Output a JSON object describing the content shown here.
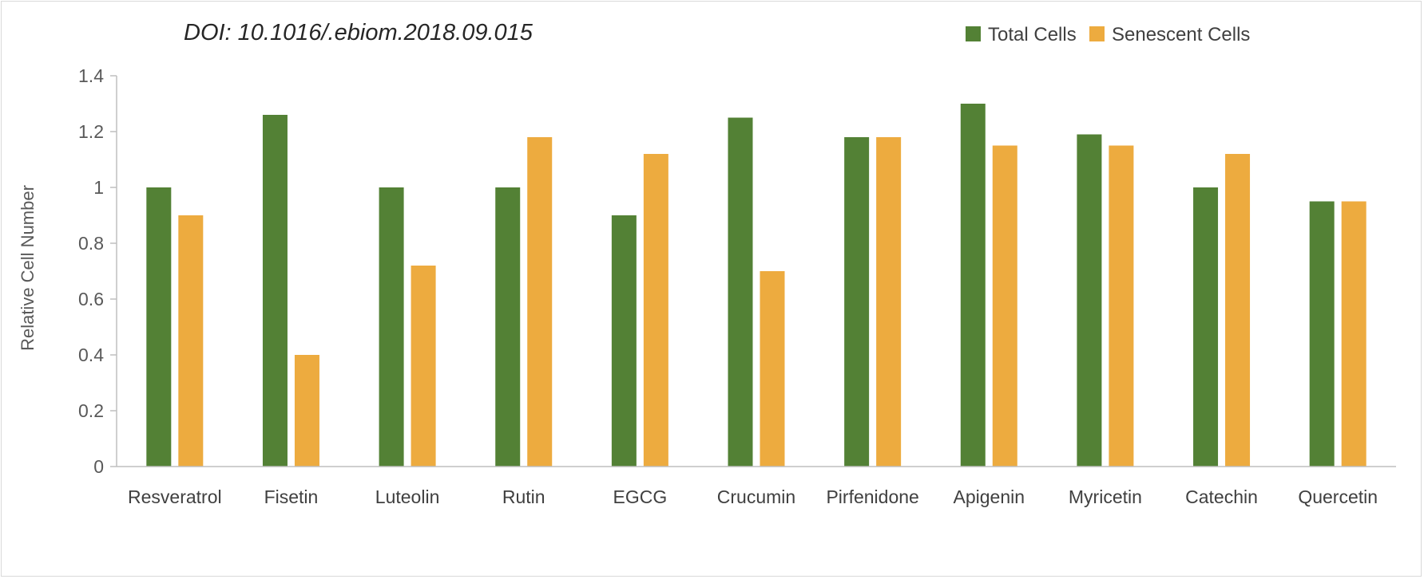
{
  "annotation": "DOI: 10.1016/.ebiom.2018.09.015",
  "colors": {
    "total": "#538135",
    "senescent": "#EDAB3F",
    "axis": "#bfbfbf"
  },
  "chart_data": {
    "type": "bar",
    "title": "",
    "xlabel": "",
    "ylabel": "Relative Cell Number",
    "ylim": [
      0,
      1.4
    ],
    "yticks": [
      "0",
      "0.2",
      "0.4",
      "0.6",
      "0.8",
      "1",
      "1.2",
      "1.4"
    ],
    "grid": false,
    "legend_position": "top-right",
    "categories": [
      "Resveratrol",
      "Fisetin",
      "Luteolin",
      "Rutin",
      "EGCG",
      "Crucumin",
      "Pirfenidone",
      "Apigenin",
      "Myricetin",
      "Catechin",
      "Quercetin"
    ],
    "series": [
      {
        "name": "Total Cells",
        "values": [
          1.0,
          1.26,
          1.0,
          1.0,
          0.9,
          1.25,
          1.18,
          1.3,
          1.19,
          1.0,
          0.95
        ]
      },
      {
        "name": "Senescent Cells",
        "values": [
          0.9,
          0.4,
          0.72,
          1.18,
          1.12,
          0.7,
          1.18,
          1.15,
          1.15,
          1.12,
          0.95
        ]
      }
    ]
  }
}
